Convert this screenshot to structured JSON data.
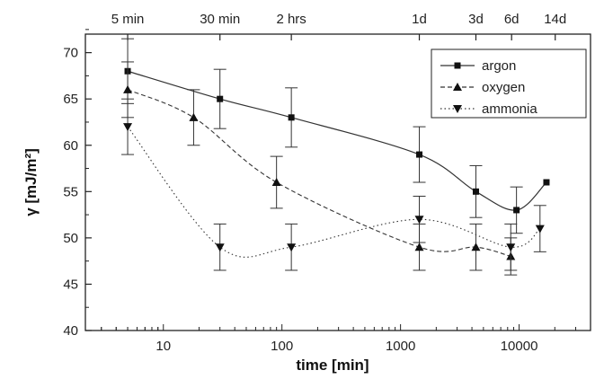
{
  "chart_data": {
    "type": "scatter",
    "title": "",
    "xlabel": "time [min]",
    "ylabel": "γ [mJ/m²]",
    "x_scale": "log",
    "xlim": [
      2.2,
      40000
    ],
    "ylim": [
      40,
      72
    ],
    "y_ticks": [
      40,
      45,
      50,
      55,
      60,
      65,
      70
    ],
    "x_ticks": [
      {
        "value": 10,
        "label": "10"
      },
      {
        "value": 100,
        "label": "100"
      },
      {
        "value": 1000,
        "label": "1000"
      },
      {
        "value": 10000,
        "label": "10000"
      }
    ],
    "top_ticks": [
      {
        "value": 5,
        "label": "5 min"
      },
      {
        "value": 30,
        "label": "30 min"
      },
      {
        "value": 120,
        "label": "2 hrs"
      },
      {
        "value": 1440,
        "label": "1d"
      },
      {
        "value": 4320,
        "label": "3d"
      },
      {
        "value": 8640,
        "label": "6d"
      },
      {
        "value": 20160,
        "label": "14d"
      }
    ],
    "legend_position": "top-right",
    "series": [
      {
        "name": "argon",
        "marker": "square",
        "line": "solid",
        "points": [
          {
            "x": 5,
            "y": 68,
            "err": 3.5
          },
          {
            "x": 30,
            "y": 65,
            "err": 3.2
          },
          {
            "x": 120,
            "y": 63,
            "err": 3.2
          },
          {
            "x": 1440,
            "y": 59,
            "err": 3.0
          },
          {
            "x": 4320,
            "y": 55,
            "err": 2.8
          },
          {
            "x": 9500,
            "y": 53,
            "err": 2.5
          },
          {
            "x": 17000,
            "y": 56,
            "err": 0
          }
        ]
      },
      {
        "name": "oxygen",
        "marker": "triangle-up",
        "line": "dashed",
        "points": [
          {
            "x": 5,
            "y": 66,
            "err": 3.0
          },
          {
            "x": 18,
            "y": 63,
            "err": 3.0
          },
          {
            "x": 90,
            "y": 56,
            "err": 2.8
          },
          {
            "x": 1440,
            "y": 49,
            "err": 2.5
          },
          {
            "x": 4320,
            "y": 49,
            "err": 2.5
          },
          {
            "x": 8500,
            "y": 48,
            "err": 2.0
          }
        ]
      },
      {
        "name": "ammonia",
        "marker": "triangle-down",
        "line": "dotted",
        "points": [
          {
            "x": 5,
            "y": 62,
            "err": 3.0
          },
          {
            "x": 30,
            "y": 49,
            "err": 2.5
          },
          {
            "x": 120,
            "y": 49,
            "err": 2.5
          },
          {
            "x": 1440,
            "y": 52,
            "err": 2.5
          },
          {
            "x": 8500,
            "y": 49,
            "err": 2.5
          },
          {
            "x": 15000,
            "y": 51,
            "err": 2.5
          }
        ]
      }
    ]
  }
}
